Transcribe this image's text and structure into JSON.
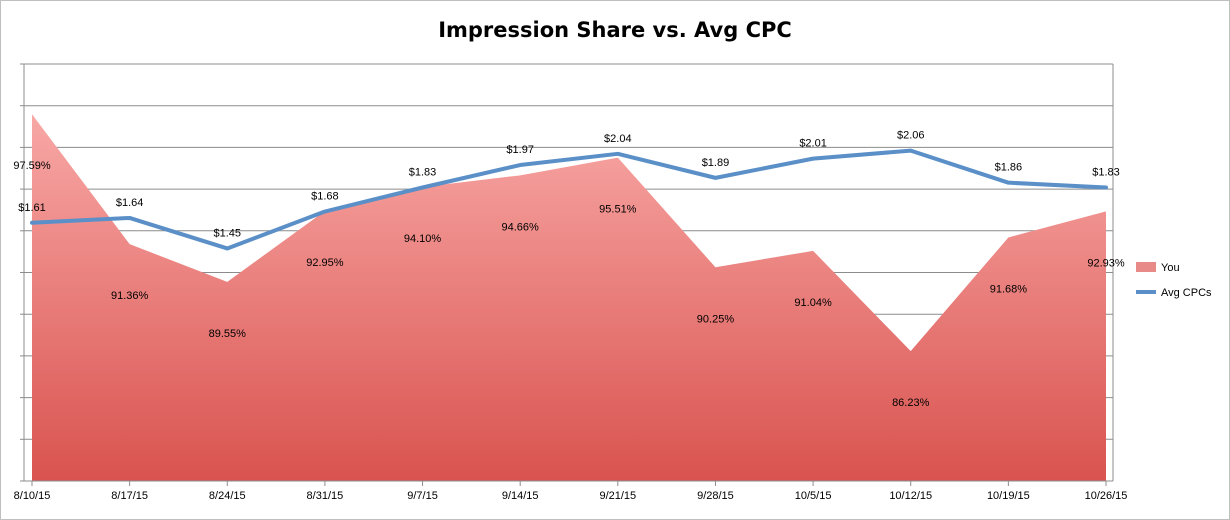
{
  "chart_data": {
    "type": "area+line",
    "title": "Impression Share vs. Avg CPC",
    "categories": [
      "8/10/15",
      "8/17/15",
      "8/24/15",
      "8/31/15",
      "9/7/15",
      "9/14/15",
      "9/21/15",
      "9/28/15",
      "10/5/15",
      "10/12/15",
      "10/19/15",
      "10/26/15"
    ],
    "series": [
      {
        "name": "You",
        "kind": "area",
        "values": [
          97.59,
          91.36,
          89.55,
          92.95,
          94.1,
          94.66,
          95.51,
          90.25,
          91.04,
          86.23,
          91.68,
          92.93
        ],
        "labels": [
          "97.59%",
          "91.36%",
          "89.55%",
          "92.95%",
          "94.10%",
          "94.66%",
          "95.51%",
          "90.25%",
          "91.04%",
          "86.23%",
          "91.68%",
          "92.93%"
        ],
        "color": "#e05a58"
      },
      {
        "name": "Avg CPCs",
        "kind": "line",
        "values": [
          1.61,
          1.64,
          1.45,
          1.68,
          1.83,
          1.97,
          2.04,
          1.89,
          2.01,
          2.06,
          1.86,
          1.83
        ],
        "labels": [
          "$1.61",
          "$1.64",
          "$1.45",
          "$1.68",
          "$1.83",
          "$1.97",
          "$2.04",
          "$1.89",
          "$2.01",
          "$2.06",
          "$1.86",
          "$1.83"
        ],
        "color": "#5b8fc7"
      }
    ],
    "y_primary_range": [
      80,
      100
    ],
    "y_secondary_range": [
      0,
      2.6
    ],
    "grid": true,
    "legend_position": "right"
  }
}
